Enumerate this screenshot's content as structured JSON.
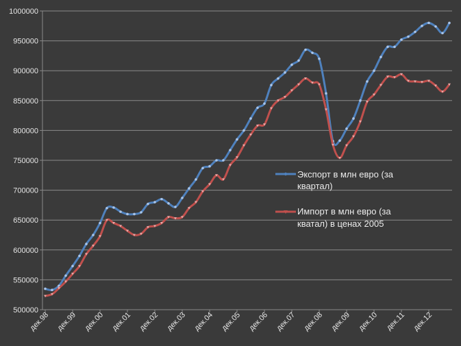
{
  "chart_data": {
    "type": "line",
    "ylim": [
      500000,
      1000000
    ],
    "y_ticks": [
      "500000",
      "550000",
      "600000",
      "650000",
      "700000",
      "750000",
      "800000",
      "850000",
      "900000",
      "950000",
      "1000000"
    ],
    "x_labels": [
      "дек.98",
      "дек.99",
      "дек.00",
      "дек.01",
      "дек.02",
      "дек.03",
      "дек.04",
      "дек.05",
      "дек.06",
      "дек.07",
      "дек.08",
      "дек.09",
      "дек.10",
      "дек.11",
      "дек.12"
    ],
    "grid": true,
    "legend_position": "right",
    "series": [
      {
        "name": "Экспорт в млн евро (за квартал)",
        "color": "#4f81bd",
        "values": [
          535000,
          533000,
          540000,
          557000,
          573000,
          590000,
          610000,
          625000,
          645000,
          670000,
          671000,
          664000,
          660000,
          660000,
          663000,
          677000,
          680000,
          685000,
          678000,
          672000,
          687000,
          703000,
          718000,
          737000,
          740000,
          750000,
          750000,
          767000,
          785000,
          800000,
          820000,
          838000,
          845000,
          876000,
          887000,
          897000,
          910000,
          917000,
          935000,
          930000,
          920000,
          862000,
          782000,
          783000,
          803000,
          820000,
          850000,
          882000,
          900000,
          923000,
          940000,
          940000,
          952000,
          957000,
          965000,
          975000,
          980000,
          974000,
          963000,
          980000
        ]
      },
      {
        "name": "Импорт в млн евро (за квратал) в ценах 2005",
        "color": "#c0504d",
        "values": [
          523000,
          526000,
          536000,
          547000,
          560000,
          573000,
          593000,
          607000,
          623000,
          650000,
          645000,
          640000,
          632000,
          625000,
          627000,
          638000,
          640000,
          645000,
          655000,
          653000,
          655000,
          670000,
          680000,
          698000,
          710000,
          725000,
          718000,
          742000,
          755000,
          775000,
          793000,
          808000,
          810000,
          837000,
          850000,
          856000,
          867000,
          877000,
          887000,
          880000,
          877000,
          835000,
          776000,
          754000,
          775000,
          790000,
          815000,
          848000,
          860000,
          876000,
          890000,
          889000,
          894000,
          883000,
          882000,
          881000,
          883000,
          875000,
          865000,
          877000
        ]
      }
    ]
  }
}
